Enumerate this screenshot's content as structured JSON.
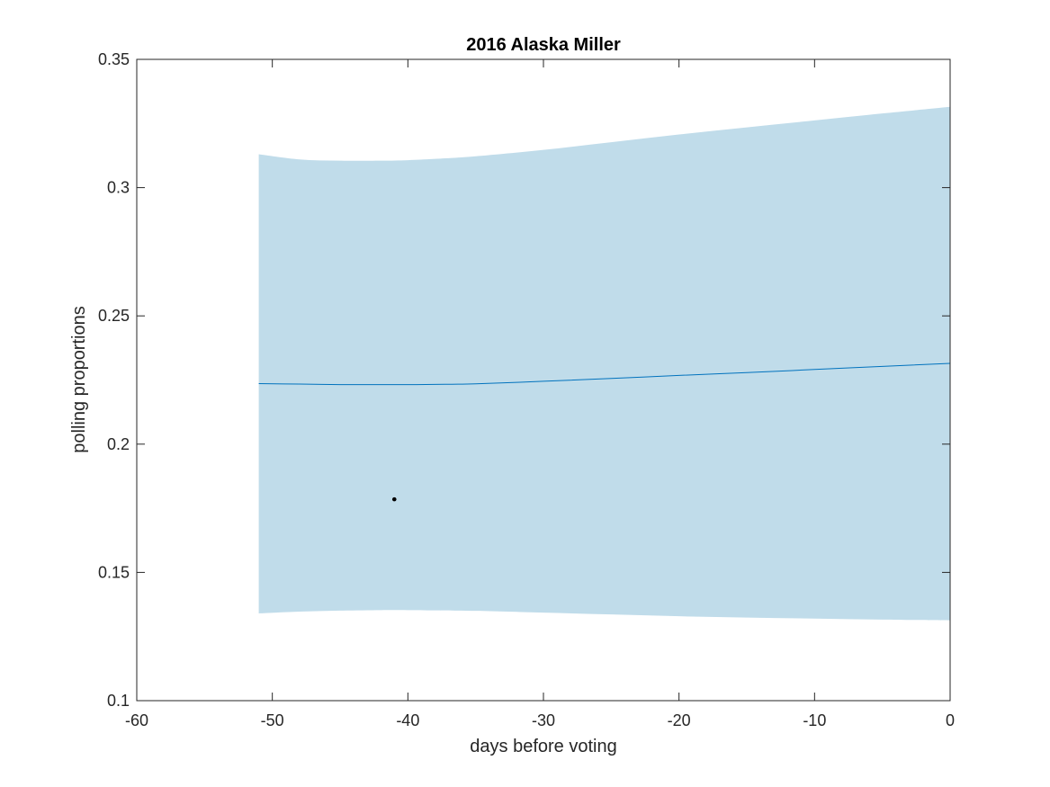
{
  "chart_data": {
    "type": "line",
    "title": "2016 Alaska Miller",
    "xlabel": "days before voting",
    "ylabel": "polling proportions",
    "xlim": [
      -60,
      0
    ],
    "ylim": [
      0.1,
      0.35
    ],
    "xticks": [
      -60,
      -50,
      -40,
      -30,
      -20,
      -10,
      0
    ],
    "yticks": [
      0.1,
      0.15,
      0.2,
      0.25,
      0.3,
      0.35
    ],
    "xtick_labels": [
      "-60",
      "-50",
      "-40",
      "-30",
      "-20",
      "-10",
      "0"
    ],
    "ytick_labels": [
      "0.1",
      "0.15",
      "0.2",
      "0.25",
      "0.3",
      "0.35"
    ],
    "grid": false,
    "band": {
      "x": [
        -51,
        -48,
        -45,
        -42,
        -40,
        -38,
        -35,
        -30,
        -25,
        -20,
        -15,
        -10,
        -5,
        0
      ],
      "upper": [
        0.313,
        0.311,
        0.3105,
        0.3105,
        0.3107,
        0.3112,
        0.3122,
        0.3147,
        0.3177,
        0.3207,
        0.3235,
        0.3262,
        0.3289,
        0.3315
      ],
      "lower": [
        0.134,
        0.1347,
        0.1351,
        0.1353,
        0.1353,
        0.1352,
        0.135,
        0.1343,
        0.1336,
        0.1329,
        0.1324,
        0.132,
        0.1316,
        0.1313
      ],
      "color": "#c0dcea"
    },
    "series": [
      {
        "x": [
          -51,
          -48,
          -45,
          -42,
          -40,
          -38,
          -35,
          -30,
          -25,
          -20,
          -15,
          -10,
          -5,
          0
        ],
        "values": [
          0.2236,
          0.2234,
          0.2232,
          0.2232,
          0.2232,
          0.2233,
          0.2235,
          0.2245,
          0.2256,
          0.2268,
          0.2279,
          0.2291,
          0.2303,
          0.2315
        ],
        "color": "#0072bd"
      }
    ],
    "points": [
      {
        "x": -41,
        "y": 0.1785,
        "color": "#000000"
      }
    ]
  }
}
